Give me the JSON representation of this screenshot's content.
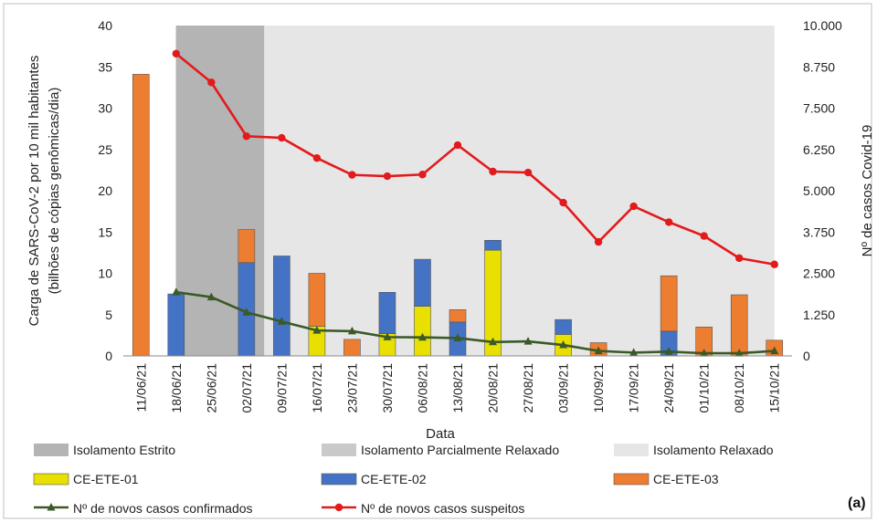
{
  "panel_label": "(a)",
  "chart_data": {
    "type": "bar",
    "xlabel": "Data",
    "ylabel_lines": [
      "Carga de SARS-CoV-2 por 10 mil habitantes",
      "(bilhões de cópias genômicas/dia)"
    ],
    "y2label": "Nº de casos Covid-19",
    "ylim": [
      0,
      40
    ],
    "y_ticks": [
      "0",
      "5",
      "10",
      "15",
      "20",
      "25",
      "30",
      "35",
      "40"
    ],
    "y2lim": [
      0,
      10000
    ],
    "y2_ticks": [
      "0",
      "1.250",
      "2.500",
      "3.750",
      "5.000",
      "6.250",
      "7.500",
      "8.750",
      "10.000"
    ],
    "categories": [
      "11/06/21",
      "18/06/21",
      "25/06/21",
      "02/07/21",
      "09/07/21",
      "16/07/21",
      "23/07/21",
      "30/07/21",
      "06/08/21",
      "13/08/21",
      "20/08/21",
      "27/08/21",
      "03/09/21",
      "10/09/21",
      "17/09/21",
      "24/09/21",
      "01/10/21",
      "08/10/21",
      "15/10/21"
    ],
    "stacked": true,
    "series": [
      {
        "name": "CE-ETE-01",
        "color": "#E8E000",
        "axis": "left",
        "values": [
          0,
          0,
          0,
          0,
          0,
          3.6,
          0,
          2.7,
          6.0,
          0,
          12.8,
          0,
          2.6,
          0,
          0,
          0,
          0,
          0,
          0
        ]
      },
      {
        "name": "CE-ETE-02",
        "color": "#4472C4",
        "axis": "left",
        "values": [
          0,
          7.5,
          0,
          11.3,
          12.1,
          0,
          0,
          5.0,
          5.7,
          4.1,
          1.2,
          0,
          1.8,
          0,
          0,
          3.0,
          0,
          0,
          0
        ]
      },
      {
        "name": "CE-ETE-03",
        "color": "#ED7D31",
        "axis": "left",
        "values": [
          34.1,
          0,
          0,
          4.0,
          0,
          6.4,
          2.0,
          0,
          0,
          1.5,
          0,
          0,
          0,
          1.6,
          0,
          6.7,
          3.5,
          7.4,
          1.9
        ]
      },
      {
        "name": "Nº de novos casos confirmados",
        "type": "line",
        "color": "#3A5A28",
        "marker": "triangle",
        "axis": "right",
        "values": [
          null,
          1930,
          1780,
          1320,
          1040,
          770,
          750,
          570,
          560,
          540,
          420,
          440,
          330,
          150,
          100,
          130,
          80,
          80,
          150
        ]
      },
      {
        "name": "Nº de novos casos suspeitos",
        "type": "line",
        "color": "#E31A1C",
        "marker": "circle",
        "axis": "right",
        "values": [
          null,
          9150,
          8280,
          6650,
          6600,
          5990,
          5480,
          5440,
          5490,
          6380,
          5580,
          5550,
          4640,
          3450,
          4530,
          4050,
          3630,
          2960,
          2770
        ]
      }
    ],
    "background_periods": [
      {
        "name": "Isolamento Estrito",
        "color": "#B4B4B4",
        "from_category": "18/06/21",
        "to_category": "09/07/21"
      },
      {
        "name": "Isolamento Parcialmente Relaxado",
        "color": "#C9C9C9"
      },
      {
        "name": "Isolamento Relaxado",
        "color": "#E6E6E6",
        "from_category": "09/07/21",
        "to_category": "15/10/21"
      }
    ],
    "grid": false,
    "legend_placement": "bottom"
  }
}
